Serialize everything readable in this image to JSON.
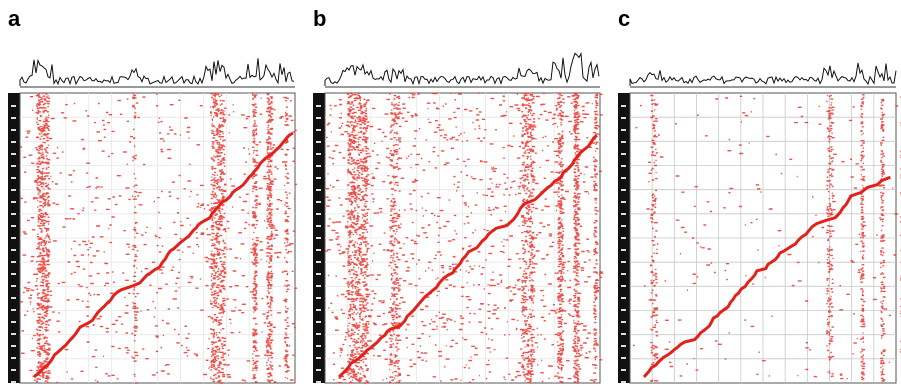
{
  "figure": {
    "panels": [
      {
        "letter": "a"
      },
      {
        "letter": "b"
      },
      {
        "letter": "c"
      }
    ]
  }
}
